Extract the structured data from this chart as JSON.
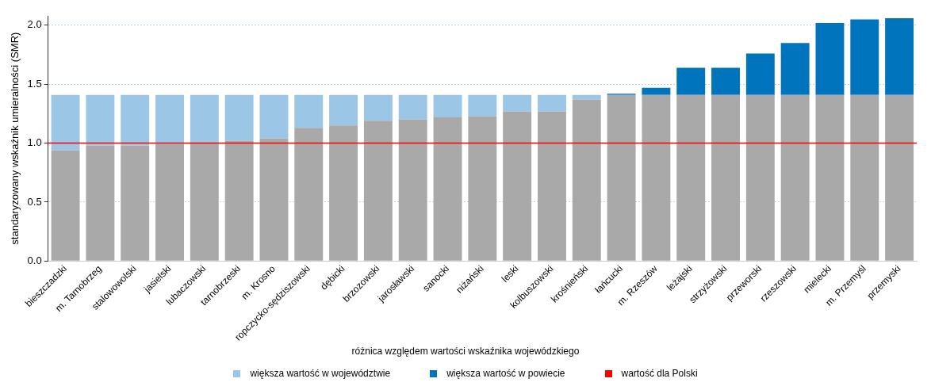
{
  "chart_data": {
    "type": "bar",
    "stacked": true,
    "categories": [
      "bieszczadzki",
      "m. Tarnobrzeg",
      "stalowowolski",
      "jasielski",
      "lubaczowski",
      "tarnobrzeski",
      "m. Krosno",
      "ropczycko-sędziszowski",
      "dębicki",
      "brzozowski",
      "jarosławski",
      "sanocki",
      "niżański",
      "leski",
      "kolbuszowski",
      "krośnieński",
      "łańcucki",
      "m. Rzeszów",
      "leżajski",
      "strzyżowski",
      "przeworski",
      "rzeszowski",
      "mielecki",
      "m. Przemyśl",
      "przemyski"
    ],
    "series": [
      {
        "color": "#a9a9a9",
        "values": [
          0.94,
          0.98,
          0.98,
          0.99,
          1.0,
          1.02,
          1.04,
          1.13,
          1.15,
          1.19,
          1.2,
          1.22,
          1.23,
          1.27,
          1.27,
          1.37,
          1.41,
          1.41,
          1.41,
          1.41,
          1.41,
          1.41,
          1.41,
          1.41,
          1.41
        ]
      },
      {
        "name": "większa wartość w województwie",
        "color": "#9bc6e6",
        "values": [
          0.47,
          0.43,
          0.43,
          0.42,
          0.41,
          0.39,
          0.37,
          0.28,
          0.26,
          0.22,
          0.21,
          0.19,
          0.18,
          0.14,
          0.14,
          0.04,
          null,
          null,
          null,
          null,
          null,
          null,
          null,
          null,
          null
        ]
      },
      {
        "name": "większa wartość w powiecie",
        "color": "#0075bd",
        "values": [
          null,
          null,
          null,
          null,
          null,
          null,
          null,
          null,
          null,
          null,
          null,
          null,
          null,
          null,
          null,
          null,
          0.01,
          0.06,
          0.23,
          0.23,
          0.35,
          0.44,
          0.61,
          0.64,
          0.65
        ]
      }
    ],
    "ylabel": "standaryzowany wskaźnik umieralności (SMR)",
    "legend_title": "różnica względem wartości wskaźnika wojewódzkiego",
    "ylim": [
      0,
      2.08
    ],
    "yticks": [
      {
        "value": 0,
        "label": "0.0"
      },
      {
        "value": 0.5,
        "label": "0.5"
      },
      {
        "value": 1,
        "label": "1.0"
      },
      {
        "value": 1.5,
        "label": "1.5"
      },
      {
        "value": 2,
        "label": "2.0"
      }
    ],
    "grid": "y",
    "legend": "bottom",
    "ref_lines": [
      {
        "axis": "y",
        "value": 1.0,
        "label": "wartość dla Polski",
        "color": "#ff0000"
      }
    ]
  }
}
